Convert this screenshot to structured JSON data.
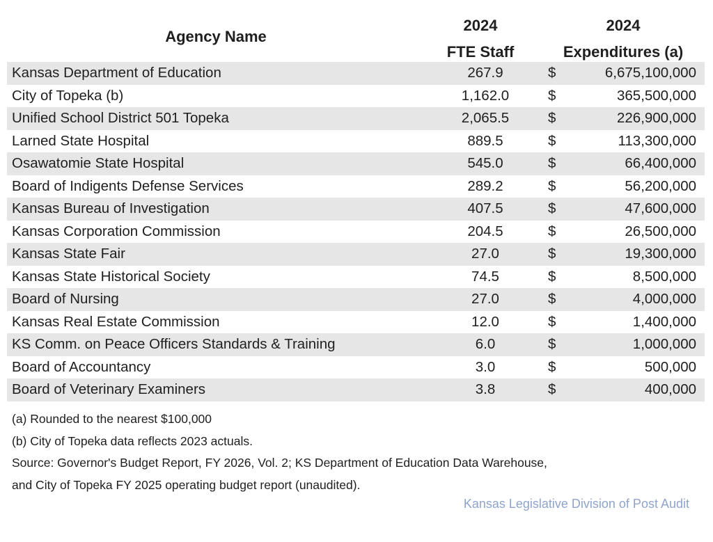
{
  "table": {
    "headers": {
      "agency": "Agency Name",
      "fte_line1": "2024",
      "fte_line2": "FTE Staff",
      "exp_line1": "2024",
      "exp_line2": "Expenditures (a)"
    },
    "currency_symbol": "$",
    "rows": [
      {
        "agency": "Kansas Department of Education",
        "fte": "267.9",
        "expenditures": "6,675,100,000"
      },
      {
        "agency": "City of Topeka (b)",
        "fte": "1,162.0",
        "expenditures": "365,500,000"
      },
      {
        "agency": "Unified School District 501 Topeka",
        "fte": "2,065.5",
        "expenditures": "226,900,000"
      },
      {
        "agency": "Larned State Hospital",
        "fte": "889.5",
        "expenditures": "113,300,000"
      },
      {
        "agency": "Osawatomie State Hospital",
        "fte": "545.0",
        "expenditures": "66,400,000"
      },
      {
        "agency": "Board of Indigents Defense Services",
        "fte": "289.2",
        "expenditures": "56,200,000"
      },
      {
        "agency": "Kansas Bureau of Investigation",
        "fte": "407.5",
        "expenditures": "47,600,000"
      },
      {
        "agency": "Kansas Corporation Commission",
        "fte": "204.5",
        "expenditures": "26,500,000"
      },
      {
        "agency": "Kansas State Fair",
        "fte": "27.0",
        "expenditures": "19,300,000"
      },
      {
        "agency": "Kansas State Historical Society",
        "fte": "74.5",
        "expenditures": "8,500,000"
      },
      {
        "agency": "Board of Nursing",
        "fte": "27.0",
        "expenditures": "4,000,000"
      },
      {
        "agency": "Kansas Real Estate Commission",
        "fte": "12.0",
        "expenditures": "1,400,000"
      },
      {
        "agency": "KS Comm. on Peace Officers Standards & Training",
        "fte": "6.0",
        "expenditures": "1,000,000"
      },
      {
        "agency": "Board of Accountancy",
        "fte": "3.0",
        "expenditures": "500,000"
      },
      {
        "agency": "Board of Veterinary Examiners",
        "fte": "3.8",
        "expenditures": "400,000"
      }
    ]
  },
  "notes": [
    "(a) Rounded to the nearest $100,000",
    "(b) City of Topeka data reflects 2023 actuals.",
    "Source: Governor's Budget Report, FY 2026, Vol. 2; KS Department of Education Data Warehouse,",
    "and City of Topeka FY 2025 operating budget report (unaudited)."
  ],
  "credit": "Kansas Legislative Division of Post Audit",
  "colors": {
    "stripe": "#e6e6e6",
    "credit": "#8fa4cc",
    "text": "#1f1f1f"
  }
}
